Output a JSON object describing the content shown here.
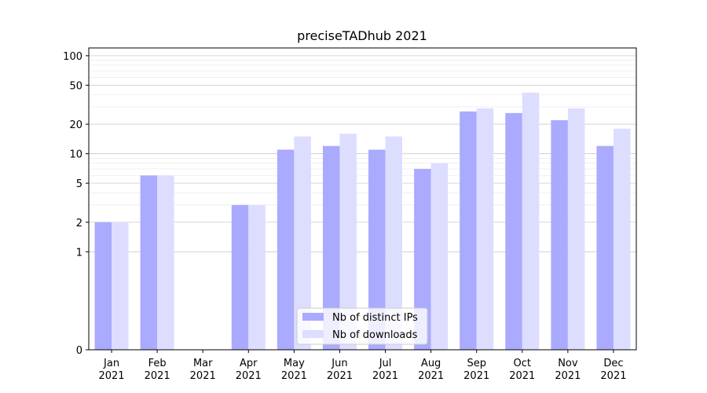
{
  "chart_data": {
    "type": "bar",
    "title": "preciseTADhub 2021",
    "xlabel": "",
    "ylabel": "",
    "y_scale": "symlog",
    "y_ticks": [
      0,
      1,
      2,
      5,
      10,
      20,
      50,
      100
    ],
    "ylim": [
      0,
      120
    ],
    "grid": "horizontal",
    "legend_position": "bottom-center",
    "categories": [
      "Jan\n2021",
      "Feb\n2021",
      "Mar\n2021",
      "Apr\n2021",
      "May\n2021",
      "Jun\n2021",
      "Jul\n2021",
      "Aug\n2021",
      "Sep\n2021",
      "Oct\n2021",
      "Nov\n2021",
      "Dec\n2021"
    ],
    "series": [
      {
        "name": "Nb of distinct IPs",
        "color": "#aaaaff",
        "values": [
          2,
          6,
          0,
          3,
          11,
          12,
          11,
          7,
          27,
          26,
          22,
          12
        ]
      },
      {
        "name": "Nb of downloads",
        "color": "#ddddff",
        "values": [
          2,
          6,
          0,
          3,
          15,
          16,
          15,
          8,
          29,
          42,
          29,
          18
        ]
      }
    ]
  }
}
